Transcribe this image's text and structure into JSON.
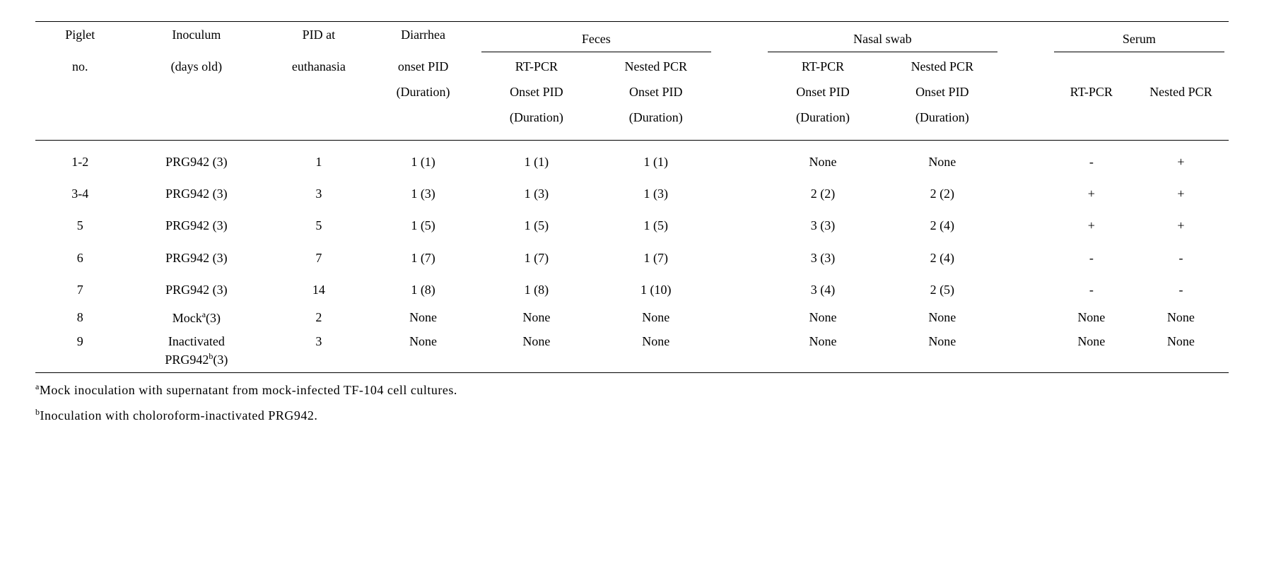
{
  "columns": {
    "piglet": {
      "l1": "Piglet",
      "l2": "no."
    },
    "inoculum": {
      "l1": "Inoculum",
      "l2": "(days old)"
    },
    "pid_euth": {
      "l1": "PID at",
      "l2": "euthanasia"
    },
    "diarrhea": {
      "l1": "Diarrhea",
      "l2": "onset PID",
      "l3": "(Duration)"
    },
    "feces": {
      "span": "Feces",
      "rtpcr": {
        "l1": "RT-PCR",
        "l2": "Onset PID",
        "l3": "(Duration)"
      },
      "nested": {
        "l1": "Nested PCR",
        "l2": "Onset PID",
        "l3": "(Duration)"
      }
    },
    "nasal": {
      "span": "Nasal swab",
      "rtpcr": {
        "l1": "RT-PCR",
        "l2": "Onset PID",
        "l3": "(Duration)"
      },
      "nested": {
        "l1": "Nested PCR",
        "l2": "Onset PID",
        "l3": "(Duration)"
      }
    },
    "serum": {
      "span": "Serum",
      "rtpcr": "RT-PCR",
      "nested": "Nested PCR"
    }
  },
  "rows": [
    {
      "piglet": "1-2",
      "inoculum": "PRG942 (3)",
      "pid": "1",
      "diarrhea": "1 (1)",
      "feces_rt": "1 (1)",
      "feces_nested": "1 (1)",
      "nasal_rt": "None",
      "nasal_nested": "None",
      "serum_rt": "-",
      "serum_nested": "+"
    },
    {
      "piglet": "3-4",
      "inoculum": "PRG942 (3)",
      "pid": "3",
      "diarrhea": "1 (3)",
      "feces_rt": "1 (3)",
      "feces_nested": "1 (3)",
      "nasal_rt": "2 (2)",
      "nasal_nested": "2 (2)",
      "serum_rt": "+",
      "serum_nested": "+"
    },
    {
      "piglet": "5",
      "inoculum": "PRG942 (3)",
      "pid": "5",
      "diarrhea": "1 (5)",
      "feces_rt": "1 (5)",
      "feces_nested": "1 (5)",
      "nasal_rt": "3 (3)",
      "nasal_nested": "2 (4)",
      "serum_rt": "+",
      "serum_nested": "+"
    },
    {
      "piglet": "6",
      "inoculum": "PRG942 (3)",
      "pid": "7",
      "diarrhea": "1 (7)",
      "feces_rt": "1 (7)",
      "feces_nested": "1 (7)",
      "nasal_rt": "3 (3)",
      "nasal_nested": "2 (4)",
      "serum_rt": "-",
      "serum_nested": "-"
    },
    {
      "piglet": "7",
      "inoculum": "PRG942 (3)",
      "pid": "14",
      "diarrhea": "1 (8)",
      "feces_rt": "1 (8)",
      "feces_nested": "1 (10)",
      "nasal_rt": "3 (4)",
      "nasal_nested": "2 (5)",
      "serum_rt": "-",
      "serum_nested": "-"
    },
    {
      "piglet": "8",
      "inoculum_has_sup": true,
      "inoculum_pre": "Mock",
      "inoculum_sup": "a",
      "inoculum_post": "(3)",
      "pid": "2",
      "diarrhea": "None",
      "feces_rt": "None",
      "feces_nested": "None",
      "nasal_rt": "None",
      "nasal_nested": "None",
      "serum_rt": "None",
      "serum_nested": "None"
    },
    {
      "piglet": "9",
      "inoculum_has_sup": true,
      "inoculum_pre": "Inactivated",
      "inoculum_sup": "b",
      "inoculum_post": "(3)",
      "inoculum_pre2": "PRG942",
      "two_line": true,
      "pid": "3",
      "diarrhea": "None",
      "feces_rt": "None",
      "feces_nested": "None",
      "nasal_rt": "None",
      "nasal_nested": "None",
      "serum_rt": "None",
      "serum_nested": "None"
    }
  ],
  "footnotes": {
    "a_sup": "a",
    "a_text": "Mock inoculation with supernatant from mock-infected TF-104 cell cultures.",
    "b_sup": "b",
    "b_text": "Inoculation with choloroform-inactivated PRG942."
  },
  "style": {
    "col_widths_pct": [
      7.5,
      12,
      8.5,
      9,
      10,
      10,
      4,
      10,
      10,
      4,
      7,
      8
    ],
    "font_size_pt": 18,
    "text_color": "#000000",
    "background_color": "#ffffff"
  }
}
